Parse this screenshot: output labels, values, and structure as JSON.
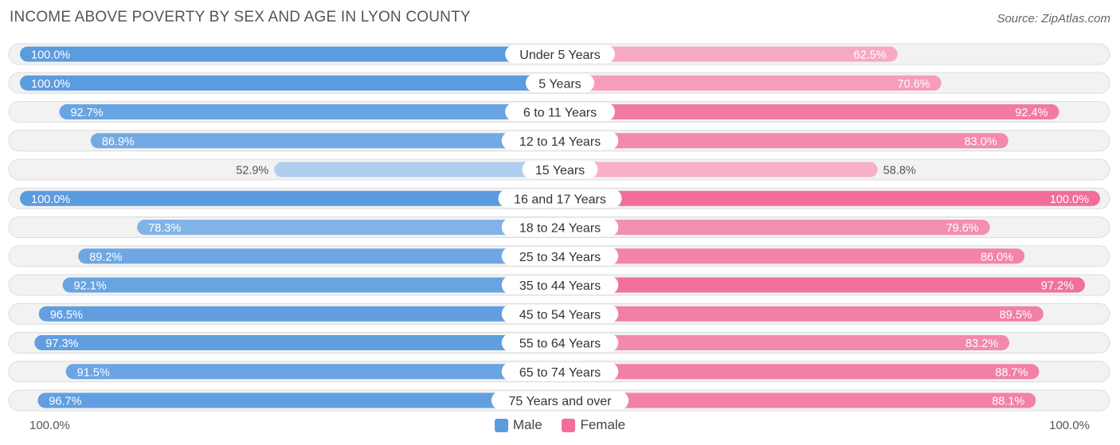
{
  "title": "INCOME ABOVE POVERTY BY SEX AND AGE IN LYON COUNTY",
  "source": "Source: ZipAtlas.com",
  "colors": {
    "male": "#5b9bdf",
    "female": "#f06e98"
  },
  "chart_data": {
    "type": "bar",
    "orientation": "horizontal-diverging",
    "title": "INCOME ABOVE POVERTY BY SEX AND AGE IN LYON COUNTY",
    "categories": [
      "Under 5 Years",
      "5 Years",
      "6 to 11 Years",
      "12 to 14 Years",
      "15 Years",
      "16 and 17 Years",
      "18 to 24 Years",
      "25 to 34 Years",
      "35 to 44 Years",
      "45 to 54 Years",
      "55 to 64 Years",
      "65 to 74 Years",
      "75 Years and over"
    ],
    "series": [
      {
        "name": "Male",
        "values": [
          100.0,
          100.0,
          92.7,
          86.9,
          52.9,
          100.0,
          78.3,
          89.2,
          92.1,
          96.5,
          97.3,
          91.5,
          96.7
        ],
        "labels": [
          "100.0%",
          "100.0%",
          "92.7%",
          "86.9%",
          "52.9%",
          "100.0%",
          "78.3%",
          "89.2%",
          "92.1%",
          "96.5%",
          "97.3%",
          "91.5%",
          "96.7%"
        ]
      },
      {
        "name": "Female",
        "values": [
          62.5,
          70.6,
          92.4,
          83.0,
          58.8,
          100.0,
          79.6,
          86.0,
          97.2,
          89.5,
          83.2,
          88.7,
          88.1
        ],
        "labels": [
          "62.5%",
          "70.6%",
          "92.4%",
          "83.0%",
          "58.8%",
          "100.0%",
          "79.6%",
          "86.0%",
          "97.2%",
          "89.5%",
          "83.2%",
          "88.7%",
          "88.1%"
        ]
      }
    ],
    "xlim": [
      0,
      100
    ],
    "axis_left_label": "100.0%",
    "axis_right_label": "100.0%",
    "legend": [
      "Male",
      "Female"
    ],
    "legend_position": "bottom-center"
  }
}
